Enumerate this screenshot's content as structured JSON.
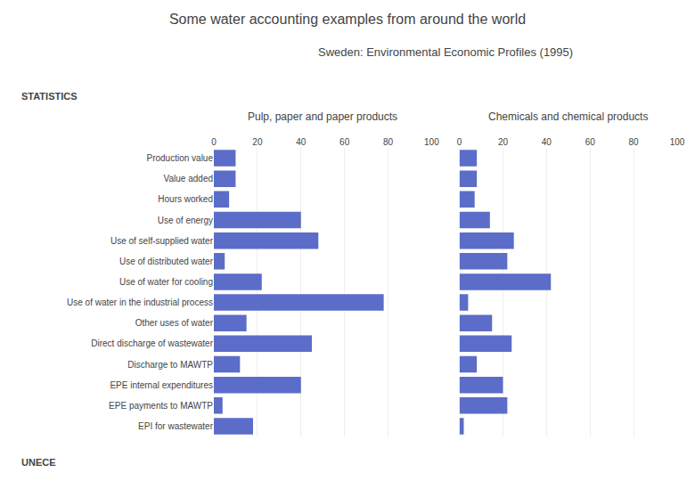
{
  "title": "Some water accounting examples from around the world",
  "subtitle": "Sweden: Environmental Economic Profiles (1995)",
  "annotations": [
    "STATISTICS",
    "UNECE"
  ],
  "chart_data": [
    {
      "type": "bar",
      "orientation": "horizontal",
      "title": "Pulp, paper and paper products",
      "categories": [
        "Production value",
        "Value added",
        "Hours worked",
        "Use of energy",
        "Use of self-supplied water",
        "Use of distributed water",
        "Use of water for cooling",
        "Use of water in the industrial process",
        "Other uses of water",
        "Direct discharge of wastewater",
        "Discharge to MAWTP",
        "EPE internal expenditures",
        "EPE payments to MAWTP",
        "EPI for wastewater"
      ],
      "values": [
        10,
        10,
        7,
        40,
        48,
        5,
        22,
        78,
        15,
        45,
        12,
        40,
        4,
        18
      ],
      "color": "#5B6DC8",
      "xlim": [
        0,
        100
      ],
      "xticks": [
        0,
        20,
        40,
        60,
        80,
        100
      ],
      "grid": true
    },
    {
      "type": "bar",
      "orientation": "horizontal",
      "title": "Chemicals and chemical products",
      "categories": [
        "Production value",
        "Value added",
        "Hours worked",
        "Use of energy",
        "Use of self-supplied water",
        "Use of distributed water",
        "Use of water for cooling",
        "Use of water in the industrial process",
        "Other uses of water",
        "Direct discharge of wastewater",
        "Discharge to MAWTP",
        "EPE internal expenditures",
        "EPE payments to MAWTP",
        "EPI for wastewater"
      ],
      "values": [
        8,
        8,
        7,
        14,
        25,
        22,
        42,
        4,
        15,
        24,
        8,
        20,
        22,
        2
      ],
      "color": "#5B6DC8",
      "xlim": [
        0,
        100
      ],
      "xticks": [
        0,
        20,
        40,
        60,
        80,
        100
      ],
      "grid": true,
      "tick_labels": "x"
    }
  ]
}
